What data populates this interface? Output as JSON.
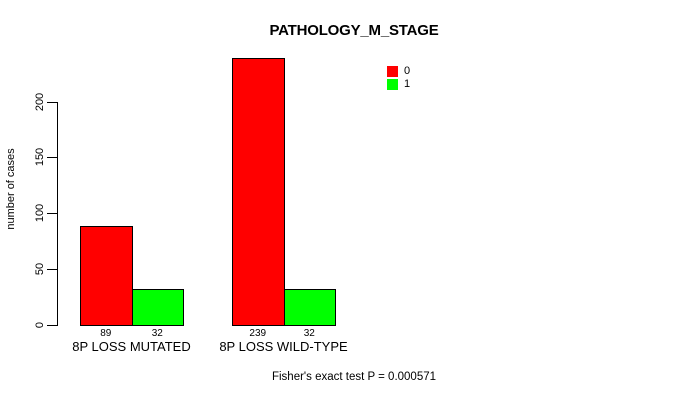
{
  "chart_data": {
    "type": "bar",
    "title": "PATHOLOGY_M_STAGE",
    "ylabel": "number of cases",
    "xlabel": "",
    "footnote": "Fisher's exact test P = 0.000571",
    "categories": [
      "8P LOSS MUTATED",
      "8P LOSS WILD-TYPE"
    ],
    "series": [
      {
        "name": "0",
        "color": "#FF0000",
        "values": [
          89,
          239
        ]
      },
      {
        "name": "1",
        "color": "#00FF00",
        "values": [
          32,
          32
        ]
      }
    ],
    "bar_value_labels": [
      [
        "89",
        "239"
      ],
      [
        "32",
        "32"
      ]
    ],
    "yticks": [
      0,
      50,
      100,
      150,
      200
    ],
    "ylim": [
      0,
      243
    ],
    "grid": false,
    "legend_position": "top-right",
    "colors": {
      "background": "#FFFFFF",
      "axis": "#000000",
      "text": "#000000",
      "bar_border": "#000000",
      "series_0": "#FF0000",
      "series_1": "#00FF00"
    }
  }
}
